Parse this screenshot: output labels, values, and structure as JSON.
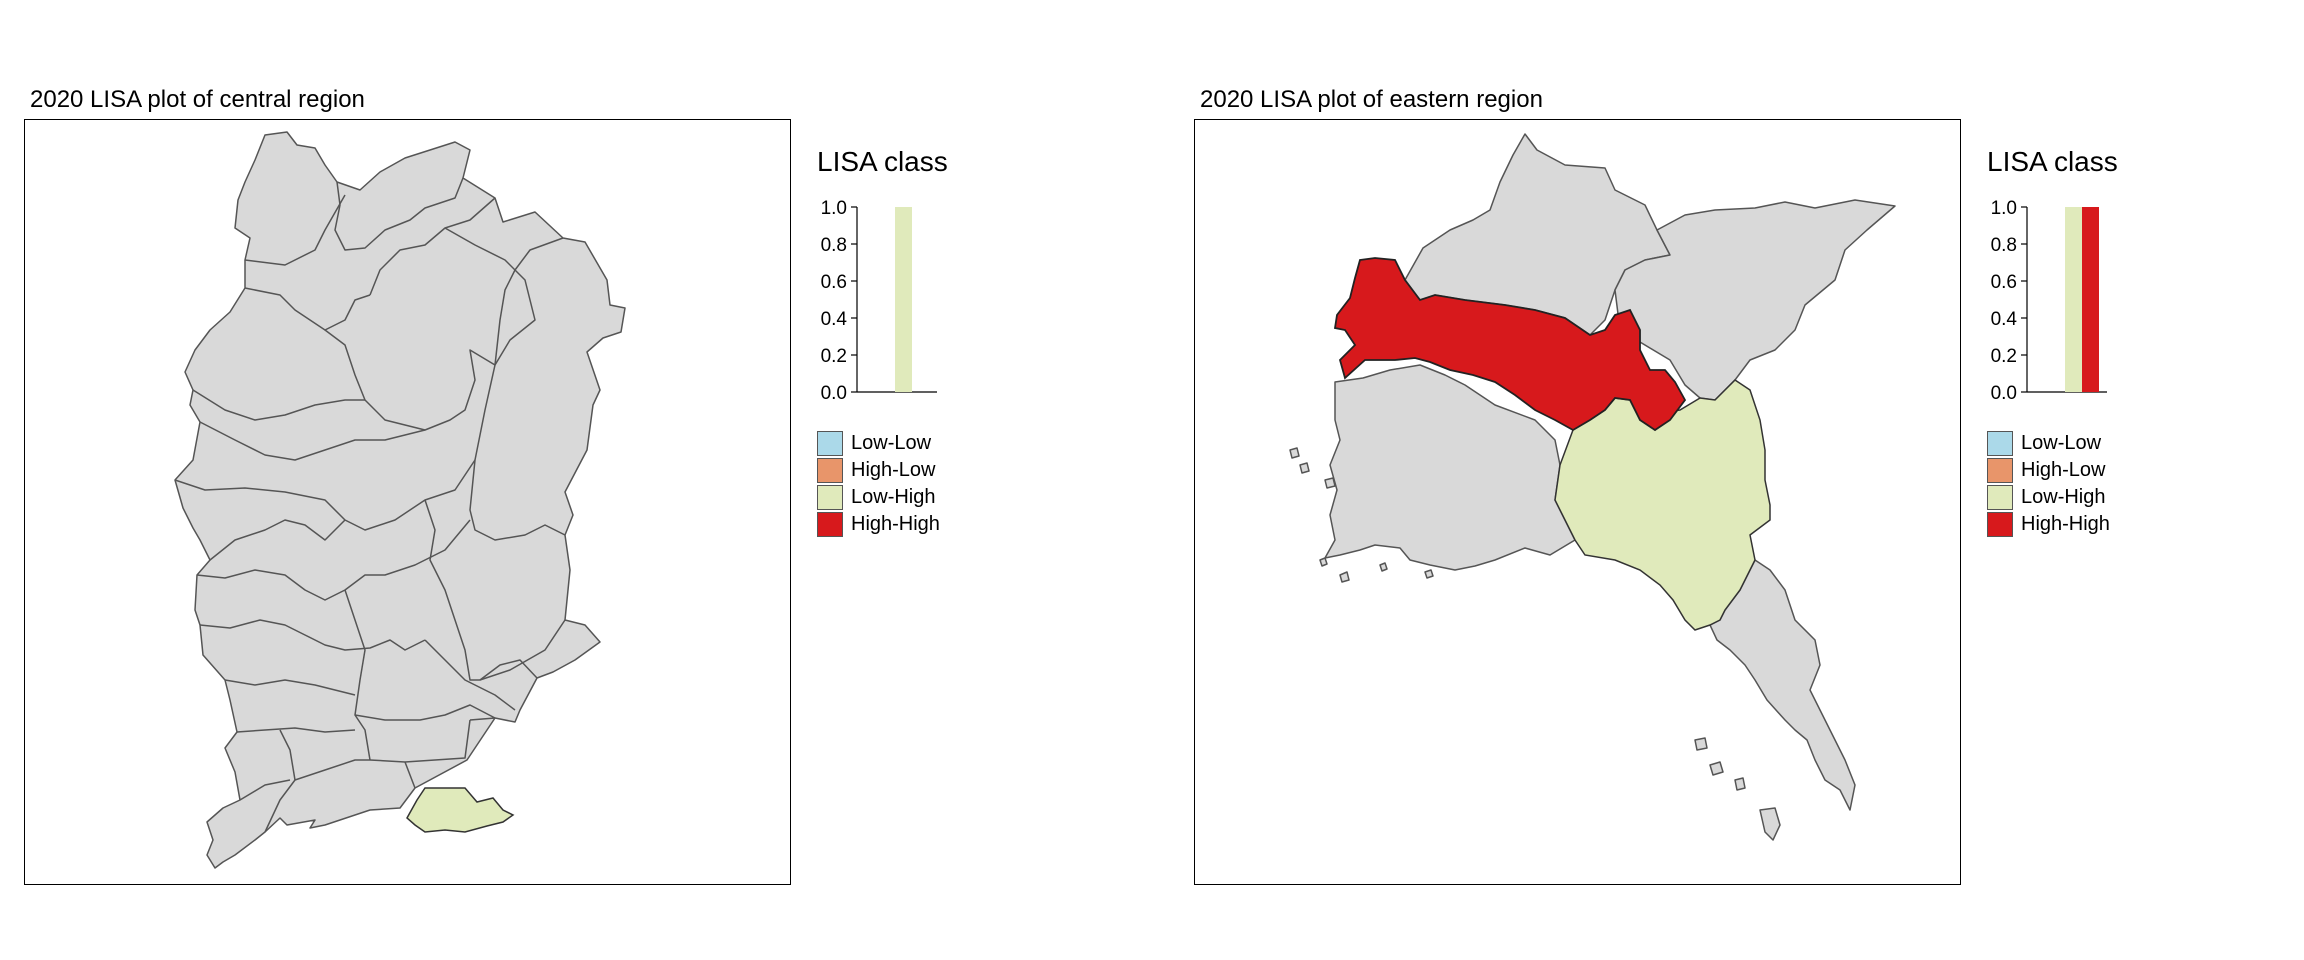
{
  "colors": {
    "Low-Low": "#abd9e9",
    "High-Low": "#e8956a",
    "Low-High": "#e0eabb",
    "High-High": "#d7191c",
    "Not significant": "#d9d9d9"
  },
  "panels": [
    {
      "title": "2020 LISA plot of central region",
      "legend_title": "LISA class",
      "legend_items": [
        "Low-Low",
        "High-Low",
        "Low-High",
        "High-High"
      ],
      "histogram": {
        "ticks": [
          "0.0",
          "0.2",
          "0.4",
          "0.6",
          "0.8",
          "1.0"
        ],
        "bars": [
          {
            "class": "Low-High",
            "value": 1.0
          }
        ]
      },
      "map": {
        "highlight_classes": [
          "Low-High"
        ]
      }
    },
    {
      "title": "2020 LISA plot of eastern region",
      "legend_title": "LISA class",
      "legend_items": [
        "Low-Low",
        "High-Low",
        "Low-High",
        "High-High"
      ],
      "histogram": {
        "ticks": [
          "0.0",
          "0.2",
          "0.4",
          "0.6",
          "0.8",
          "1.0"
        ],
        "bars": [
          {
            "class": "Low-High",
            "value": 1.0
          },
          {
            "class": "High-High",
            "value": 1.0
          }
        ]
      },
      "map": {
        "highlight_classes": [
          "High-High",
          "Low-High"
        ]
      }
    }
  ]
}
